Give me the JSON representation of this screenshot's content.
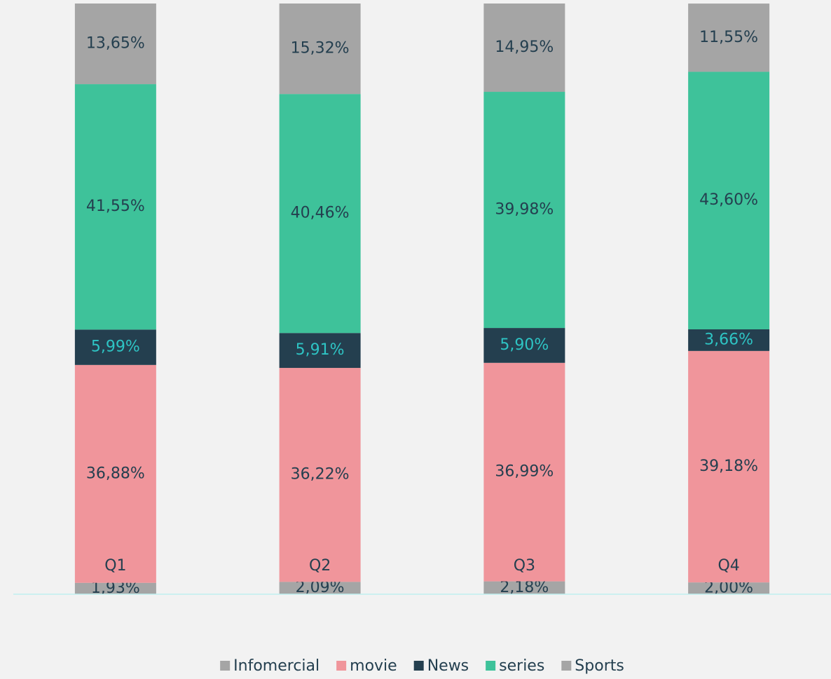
{
  "chart_data": {
    "type": "stacked_bar",
    "categories": [
      "Q1",
      "Q2",
      "Q3",
      "Q4"
    ],
    "ylim": [
      0,
      100
    ],
    "series": [
      {
        "name": "Infomercial",
        "color": "#a5a5a5",
        "label_color": "#243f4f",
        "values": [
          1.93,
          2.09,
          2.18,
          2.0
        ],
        "value_labels": [
          "1,93%",
          "2,09%",
          "2,18%",
          "2,00%"
        ]
      },
      {
        "name": "movie",
        "color": "#f0959b",
        "label_color": "#243f4f",
        "values": [
          36.88,
          36.22,
          36.99,
          39.18
        ],
        "value_labels": [
          "36,88%",
          "36,22%",
          "36,99%",
          "39,18%"
        ]
      },
      {
        "name": "News",
        "color": "#243f4f",
        "label_color": "#2ec4c4",
        "values": [
          5.99,
          5.91,
          5.9,
          3.66
        ],
        "value_labels": [
          "5,99%",
          "5,91%",
          "5,90%",
          "3,66%"
        ]
      },
      {
        "name": "series",
        "color": "#3ec29a",
        "label_color": "#243f4f",
        "values": [
          41.55,
          40.46,
          39.98,
          43.6
        ],
        "value_labels": [
          "41,55%",
          "40,46%",
          "39,98%",
          "43,60%"
        ]
      },
      {
        "name": "Sports",
        "color": "#a5a5a5",
        "label_color": "#243f4f",
        "values": [
          13.65,
          15.32,
          14.95,
          11.55
        ],
        "value_labels": [
          "13,65%",
          "15,32%",
          "14,95%",
          "11,55%"
        ]
      }
    ]
  }
}
